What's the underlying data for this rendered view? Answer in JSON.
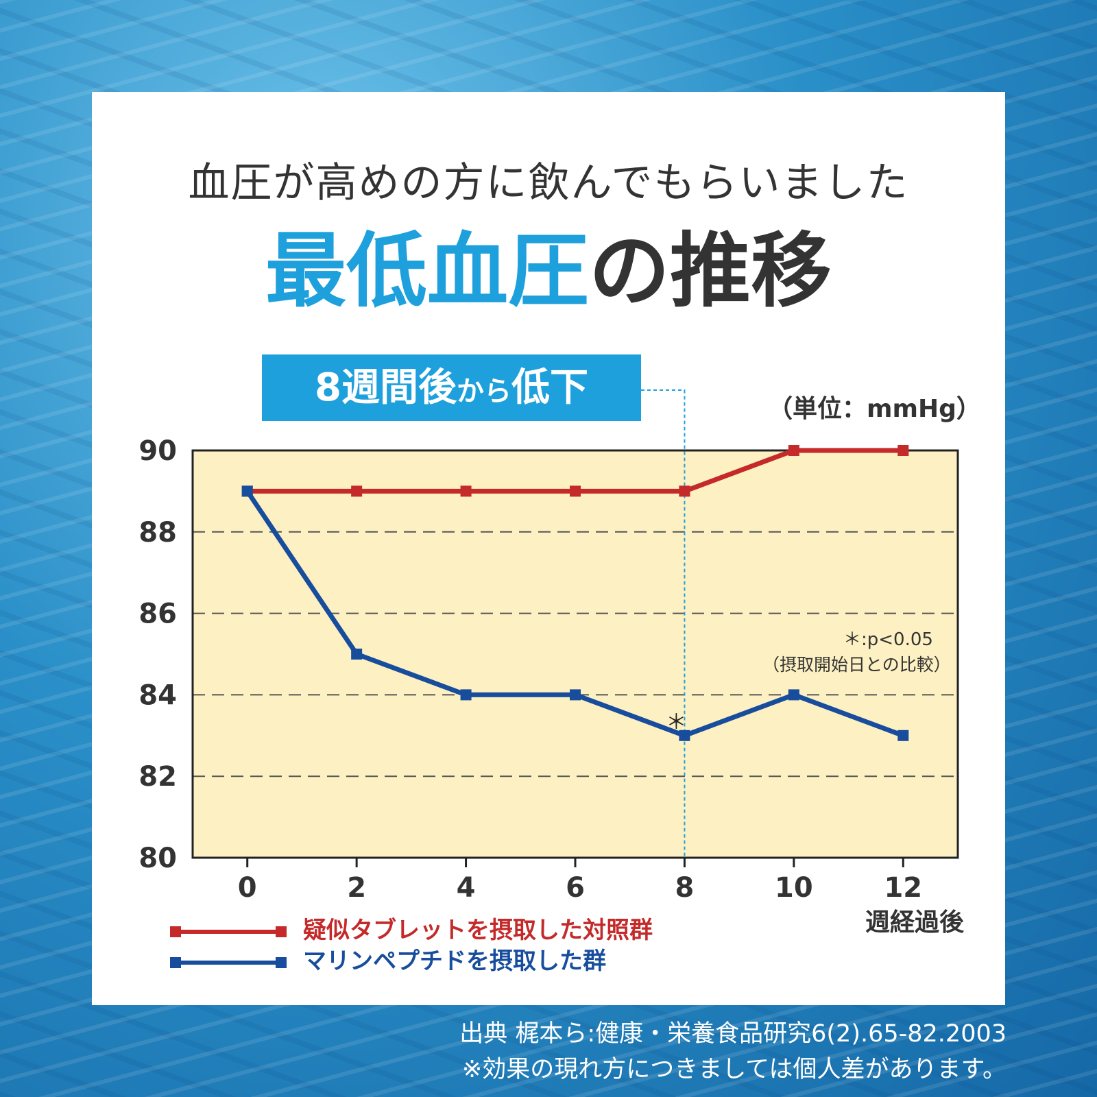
{
  "header": {
    "line1": "血圧が高めの方に飲んでもらいました",
    "line2_highlight": "最低血圧",
    "line2_rest": "の推移"
  },
  "badge": {
    "part1": "8週間後",
    "part2": "から",
    "part3": "低下"
  },
  "unit_label": "（単位：mmHg）",
  "significance": {
    "line1": "＊:p<0.05",
    "line2": "（摂取開始日との比較）"
  },
  "x_unit": "週経過後",
  "legend": {
    "control": "疑似タブレットを摂取した対照群",
    "treatment": "マリンペプチドを摂取した群"
  },
  "source": {
    "line1": "出典 梶本ら:健康・栄養食品研究6(2).65-82.2003",
    "line2": "※効果の現れ方につきましては個人差があります。"
  },
  "colors": {
    "accent": "#1ea0dc",
    "control": "#c42a2a",
    "treatment": "#174d9c",
    "plot_bg": "#fdf0c2"
  },
  "chart_data": {
    "type": "line",
    "x": [
      0,
      2,
      4,
      6,
      8,
      10,
      12
    ],
    "xlim": [
      -1,
      13
    ],
    "ylim": [
      80,
      90
    ],
    "yticks": [
      80,
      82,
      84,
      86,
      88,
      90
    ],
    "grid": "horizontal-dashed",
    "series": [
      {
        "name": "疑似タブレットを摂取した対照群",
        "values": [
          89,
          89,
          89,
          89,
          89,
          90,
          90
        ],
        "color": "#c42a2a"
      },
      {
        "name": "マリンペプチドを摂取した群",
        "values": [
          89,
          85,
          84,
          84,
          83,
          84,
          83
        ],
        "color": "#174d9c"
      }
    ],
    "annotation": {
      "x": 8,
      "y": 83,
      "text": "＊"
    },
    "highlight_x": 8
  }
}
